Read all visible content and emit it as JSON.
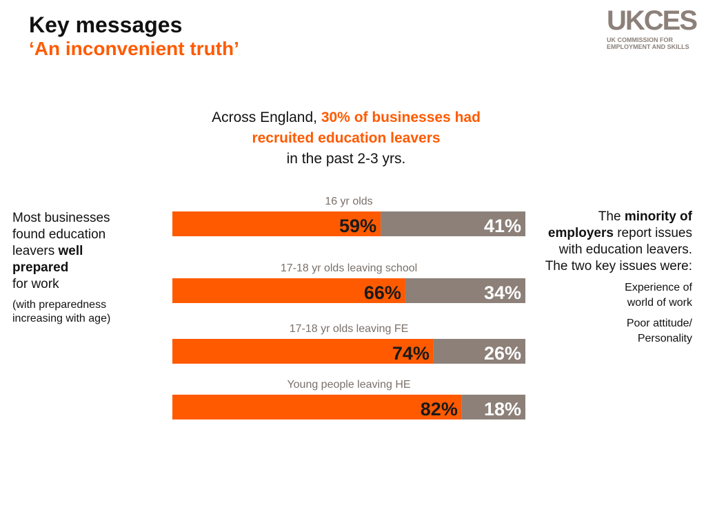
{
  "header": {
    "title": "Key messages",
    "subtitle": "‘An inconvenient truth’"
  },
  "logo": {
    "name": "UKCES",
    "tagline": "UK COMMISSION FOR EMPLOYMENT AND SKILLS"
  },
  "headline": {
    "parts": [
      "Across England, ",
      "30% of businesses had recruited education leavers",
      "in the past 2-3 yrs."
    ]
  },
  "left_note": {
    "parts": [
      "Most businesses found education leavers ",
      "well prepared",
      "for work"
    ],
    "aside": "(with preparedness increasing with age)"
  },
  "right_note": {
    "parts": [
      "The ",
      "minority of employers",
      " report issues with education leavers. The two key issues were:"
    ],
    "issues": [
      "Experience of world of work",
      "Poor attitude/ Personality"
    ]
  },
  "chart_data": {
    "type": "stacked-bar",
    "categories": [
      "16 yr olds",
      "17-18 yr olds leaving school",
      "17-18 yr olds leaving FE",
      "Young people leaving HE"
    ],
    "series": [
      {
        "color": "#ff5a00",
        "values": [
          59,
          66,
          74,
          82
        ],
        "value_labels": [
          "59%",
          "66%",
          "74%",
          "82%"
        ]
      },
      {
        "color": "#8c8079",
        "values": [
          41,
          34,
          26,
          18
        ],
        "value_labels": [
          "41%",
          "34%",
          "26%",
          "18%"
        ]
      }
    ]
  }
}
